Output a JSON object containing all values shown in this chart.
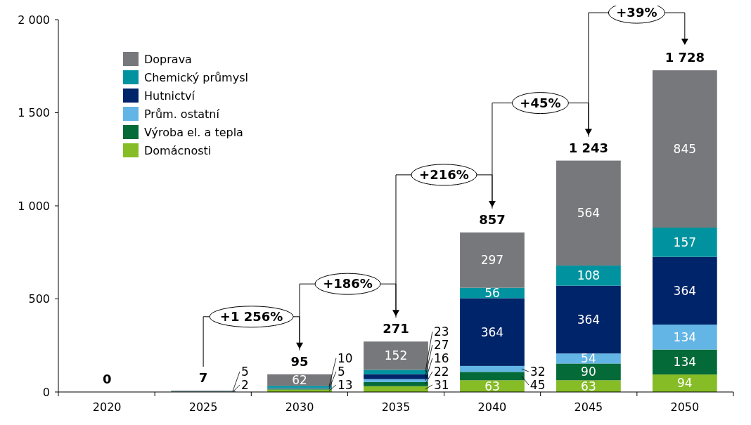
{
  "chart_data": {
    "type": "bar",
    "stacked": true,
    "categories": [
      "2020",
      "2025",
      "2030",
      "2035",
      "2040",
      "2045",
      "2050"
    ],
    "ylim": [
      0,
      2000
    ],
    "yticks": [
      0,
      500,
      {
        "value": 1000,
        "label": "1 000"
      },
      {
        "value": 1500,
        "label": "1 500"
      },
      {
        "value": 2000,
        "label": "2 000"
      }
    ],
    "grid": false,
    "legend": "top left",
    "series": [
      {
        "name": "Domácnosti",
        "color": "#86bc25",
        "values": [
          0,
          0,
          13,
          31,
          63,
          63,
          94
        ],
        "value_labels": [
          null,
          null,
          "13",
          "31",
          "63",
          "63",
          "94"
        ]
      },
      {
        "name": "Výroba el. a tepla",
        "color": "#046a38",
        "values": [
          0,
          0,
          5,
          22,
          45,
          90,
          134
        ],
        "value_labels": [
          null,
          null,
          "5",
          "22",
          "45",
          "90",
          "134"
        ]
      },
      {
        "name": "Prům. ostatní",
        "color": "#62b5e5",
        "values": [
          0,
          0,
          3,
          16,
          32,
          54,
          134
        ],
        "value_labels": [
          null,
          null,
          null,
          "16",
          "32",
          "54",
          "134"
        ]
      },
      {
        "name": "Hutnictví",
        "color": "#002469",
        "values": [
          0,
          0,
          2,
          27,
          364,
          364,
          364
        ],
        "value_labels": [
          null,
          null,
          null,
          "27",
          "364",
          "364",
          "364"
        ]
      },
      {
        "name": "Chemický průmysl",
        "color": "#00939f",
        "values": [
          0,
          2,
          10,
          23,
          56,
          108,
          157
        ],
        "value_labels": [
          null,
          "2",
          "10",
          "23",
          "56",
          "108",
          "157"
        ]
      },
      {
        "name": "Doprava",
        "color": "#77787b",
        "values": [
          0,
          5,
          62,
          152,
          297,
          564,
          845
        ],
        "value_labels": [
          null,
          "5",
          "62",
          "152",
          "297",
          "564",
          "845"
        ]
      }
    ],
    "totals": [
      "0",
      "7",
      "95",
      "271",
      "857",
      "1 243",
      "1 728"
    ],
    "annotations": [
      "+1 256%",
      "+186%",
      "+216%",
      "+45%",
      "+39%"
    ]
  }
}
